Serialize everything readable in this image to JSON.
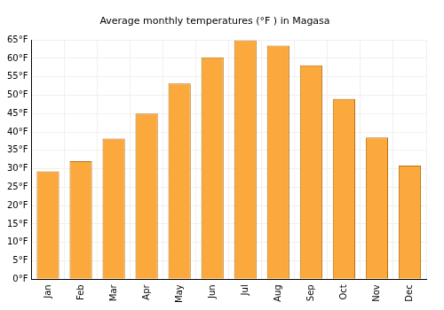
{
  "chart_data": {
    "type": "bar",
    "title": "Average monthly temperatures (°F ) in Magasa",
    "categories": [
      "Jan",
      "Feb",
      "Mar",
      "Apr",
      "May",
      "Jun",
      "Jul",
      "Aug",
      "Sep",
      "Oct",
      "Nov",
      "Dec"
    ],
    "values": [
      29.3,
      32.1,
      38.2,
      45.0,
      53.2,
      60.3,
      64.9,
      63.5,
      58.1,
      49.0,
      38.5,
      30.9
    ],
    "color": "#fba93c",
    "ylim": [
      0,
      65
    ],
    "yticks": [
      {
        "value": 0,
        "label": "0°F"
      },
      {
        "value": 5,
        "label": "5°F"
      },
      {
        "value": 10,
        "label": "10°F"
      },
      {
        "value": 15,
        "label": "15°F"
      },
      {
        "value": 20,
        "label": "20°F"
      },
      {
        "value": 25,
        "label": "25°F"
      },
      {
        "value": 30,
        "label": "30°F"
      },
      {
        "value": 35,
        "label": "35°F"
      },
      {
        "value": 40,
        "label": "40°F"
      },
      {
        "value": 45,
        "label": "45°F"
      },
      {
        "value": 50,
        "label": "50°F"
      },
      {
        "value": 55,
        "label": "55°F"
      },
      {
        "value": 60,
        "label": "60°F"
      },
      {
        "value": 65,
        "label": "65°F"
      }
    ],
    "grid": true
  }
}
